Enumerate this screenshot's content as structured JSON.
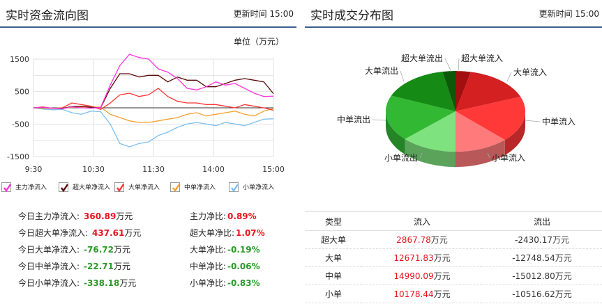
{
  "left": {
    "title": "实时资金流向图",
    "update_label": "更新时间",
    "update_time": "15:00",
    "unit": "单位（万元）",
    "chart_data": {
      "type": "line",
      "x_ticks": [
        "9:30",
        "10:30",
        "11:30",
        "14:00",
        "15:00"
      ],
      "y_ticks": [
        1500,
        500,
        -500,
        -1500
      ],
      "ylim": [
        -1500,
        1500
      ],
      "grid": true,
      "series": [
        {
          "name": "主力净流入",
          "color": "#ff33dd",
          "values": [
            0,
            20,
            -10,
            -30,
            30,
            0,
            -10,
            10,
            700,
            1300,
            1650,
            1550,
            1500,
            1200,
            1100,
            900,
            600,
            550,
            650,
            800,
            700,
            750,
            600,
            450,
            350,
            360
          ]
        },
        {
          "name": "超大单净流入",
          "color": "#5a0a0a",
          "values": [
            0,
            10,
            -10,
            -20,
            40,
            50,
            20,
            0,
            600,
            1050,
            1050,
            950,
            1000,
            1000,
            800,
            950,
            850,
            850,
            650,
            650,
            750,
            850,
            900,
            850,
            800,
            437
          ]
        },
        {
          "name": "大单净流入",
          "color": "#ff3333",
          "values": [
            0,
            30,
            -20,
            0,
            150,
            100,
            50,
            -50,
            150,
            400,
            450,
            350,
            400,
            600,
            350,
            200,
            150,
            150,
            100,
            100,
            50,
            0,
            100,
            50,
            0,
            -76
          ]
        },
        {
          "name": "中单净流入",
          "color": "#f5a030",
          "values": [
            0,
            -10,
            -20,
            0,
            10,
            20,
            30,
            20,
            -200,
            -300,
            -400,
            -450,
            -450,
            -400,
            -350,
            -300,
            -200,
            -150,
            -250,
            -200,
            -150,
            -100,
            -200,
            -250,
            -100,
            -22
          ]
        },
        {
          "name": "小单净流入",
          "color": "#7ec0ef",
          "values": [
            0,
            -40,
            -60,
            -50,
            -150,
            -200,
            -100,
            -120,
            -500,
            -1100,
            -1200,
            -1100,
            -1050,
            -850,
            -750,
            -600,
            -500,
            -450,
            -500,
            -550,
            -450,
            -500,
            -550,
            -450,
            -350,
            -338
          ]
        }
      ]
    },
    "stats_left": [
      {
        "label": "今日主力净流入:",
        "value": "360.89",
        "unit": "万元",
        "color": "red"
      },
      {
        "label": "今日超大单净流入:",
        "value": "437.61",
        "unit": "万元",
        "color": "red"
      },
      {
        "label": "今日大单净流入:",
        "value": "-76.72",
        "unit": "万元",
        "color": "green"
      },
      {
        "label": "今日中单净流入:",
        "value": "-22.71",
        "unit": "万元",
        "color": "green"
      },
      {
        "label": "今日小单净流入:",
        "value": "-338.18",
        "unit": "万元",
        "color": "green"
      }
    ],
    "stats_right": [
      {
        "label": "主力净比:",
        "value": "0.89%",
        "color": "red"
      },
      {
        "label": "超大单净比:",
        "value": "1.07%",
        "color": "red"
      },
      {
        "label": "大单净比:",
        "value": "-0.19%",
        "color": "green"
      },
      {
        "label": "中单净比:",
        "value": "-0.06%",
        "color": "green"
      },
      {
        "label": "小单净比:",
        "value": "-0.83%",
        "color": "green"
      }
    ]
  },
  "right": {
    "title": "实时成交分布图",
    "update_label": "更新时间",
    "update_time": "15:00",
    "pie": {
      "type": "pie",
      "slices": [
        {
          "label": "超大单流入",
          "value": 2867.78,
          "color": "#a30e0e"
        },
        {
          "label": "大单流入",
          "value": 12671.83,
          "color": "#d42020"
        },
        {
          "label": "中单流入",
          "value": 14990.09,
          "color": "#ff3838"
        },
        {
          "label": "小单流入",
          "value": 10178.44,
          "color": "#ff7a7a"
        },
        {
          "label": "小单流出",
          "value": 10516.62,
          "color": "#7ee27e"
        },
        {
          "label": "中单流出",
          "value": 15012.8,
          "color": "#33b833"
        },
        {
          "label": "大单流出",
          "value": 12748.54,
          "color": "#158a15"
        },
        {
          "label": "超大单流出",
          "value": 2430.17,
          "color": "#0a5a0a"
        }
      ]
    },
    "table": {
      "headers": [
        "类型",
        "流入",
        "流出"
      ],
      "unit": "万元",
      "rows": [
        {
          "type": "超大单",
          "in": "2867.78",
          "out": "-2430.17"
        },
        {
          "type": "大单",
          "in": "12671.83",
          "out": "-12748.54"
        },
        {
          "type": "中单",
          "in": "14990.09",
          "out": "-15012.80"
        },
        {
          "type": "小单",
          "in": "10178.44",
          "out": "-10516.62"
        }
      ]
    }
  }
}
